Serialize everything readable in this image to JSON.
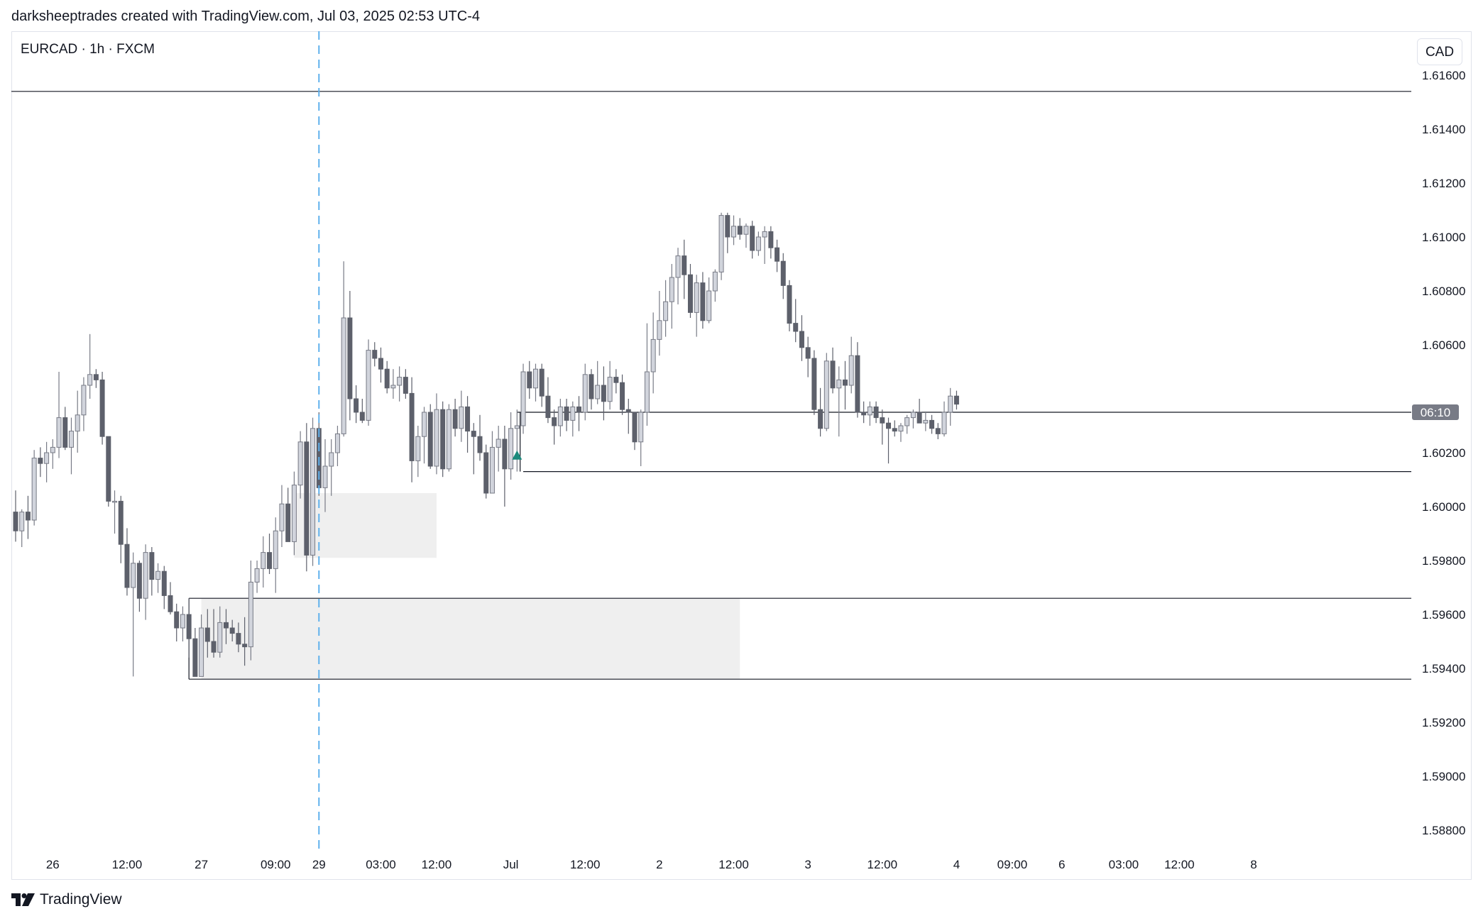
{
  "header": {
    "credit": "darksheeptrades created with TradingView.com, Jul 03, 2025 02:53 UTC-4"
  },
  "symbol": {
    "label": "EURCAD · 1h · FXCM"
  },
  "currency_button": {
    "label": "CAD"
  },
  "footer": {
    "brand": "TradingView",
    "logo_icon": "tradingview-logo-icon"
  },
  "colors": {
    "candle_up_fill": "#d1d4dc",
    "candle_up_border": "#787b86",
    "candle_down": "#5d606b",
    "zone_fill": "#efefef",
    "level_line": "#131722",
    "dashed_line": "#5fb1ec",
    "marker": "#1b8a7c",
    "price_tag": "#787b86"
  },
  "chart_data": {
    "type": "candlestick",
    "symbol": "EURCAD",
    "interval": "1h",
    "source": "FXCM",
    "currency": "CAD",
    "y_axis": {
      "range": [
        1.5875,
        1.6175
      ],
      "ticks": [
        "1.61600",
        "1.61400",
        "1.61200",
        "1.61000",
        "1.60800",
        "1.60600",
        "1.60200",
        "1.60000",
        "1.59800",
        "1.59600",
        "1.59400",
        "1.59200",
        "1.59000",
        "1.58800"
      ],
      "tick_values": [
        1.616,
        1.614,
        1.612,
        1.61,
        1.608,
        1.606,
        1.602,
        1.6,
        1.598,
        1.596,
        1.594,
        1.592,
        1.59,
        1.588
      ]
    },
    "x_axis": {
      "ticks": [
        "26",
        "12:00",
        "27",
        "09:00",
        "29",
        "03:00",
        "12:00",
        "Jul",
        "12:00",
        "2",
        "12:00",
        "3",
        "12:00",
        "4",
        "09:00",
        "6",
        "03:00",
        "12:00",
        "8"
      ],
      "tick_index": [
        6,
        18,
        30,
        42,
        49,
        59,
        68,
        80,
        92,
        104,
        116,
        128,
        140,
        152,
        161,
        169,
        179,
        188,
        200
      ]
    },
    "price_tag": "06:10",
    "candles": [
      {
        "o": 1.5998,
        "h": 1.6006,
        "l": 1.5987,
        "c": 1.5991
      },
      {
        "o": 1.5991,
        "h": 1.5999,
        "l": 1.5985,
        "c": 1.5998
      },
      {
        "o": 1.5998,
        "h": 1.6004,
        "l": 1.5988,
        "c": 1.5995
      },
      {
        "o": 1.5995,
        "h": 1.6021,
        "l": 1.5993,
        "c": 1.6018
      },
      {
        "o": 1.6018,
        "h": 1.6022,
        "l": 1.6011,
        "c": 1.6016
      },
      {
        "o": 1.6016,
        "h": 1.6024,
        "l": 1.6009,
        "c": 1.602
      },
      {
        "o": 1.602,
        "h": 1.6025,
        "l": 1.6014,
        "c": 1.6022
      },
      {
        "o": 1.6022,
        "h": 1.605,
        "l": 1.6018,
        "c": 1.6033
      },
      {
        "o": 1.6033,
        "h": 1.6037,
        "l": 1.6021,
        "c": 1.6022
      },
      {
        "o": 1.6022,
        "h": 1.6033,
        "l": 1.6012,
        "c": 1.6028
      },
      {
        "o": 1.6028,
        "h": 1.6043,
        "l": 1.602,
        "c": 1.6034
      },
      {
        "o": 1.6034,
        "h": 1.6048,
        "l": 1.6028,
        "c": 1.6045
      },
      {
        "o": 1.6045,
        "h": 1.6064,
        "l": 1.604,
        "c": 1.6049
      },
      {
        "o": 1.6049,
        "h": 1.6051,
        "l": 1.6044,
        "c": 1.6047
      },
      {
        "o": 1.6047,
        "h": 1.605,
        "l": 1.6023,
        "c": 1.6026
      },
      {
        "o": 1.6026,
        "h": 1.6026,
        "l": 1.6,
        "c": 1.6002
      },
      {
        "o": 1.6002,
        "h": 1.6006,
        "l": 1.599,
        "c": 1.6002
      },
      {
        "o": 1.6002,
        "h": 1.6004,
        "l": 1.5979,
        "c": 1.5986
      },
      {
        "o": 1.5986,
        "h": 1.5992,
        "l": 1.5967,
        "c": 1.597
      },
      {
        "o": 1.597,
        "h": 1.5983,
        "l": 1.5937,
        "c": 1.5979
      },
      {
        "o": 1.5979,
        "h": 1.598,
        "l": 1.5961,
        "c": 1.5966
      },
      {
        "o": 1.5966,
        "h": 1.5986,
        "l": 1.5958,
        "c": 1.5983
      },
      {
        "o": 1.5983,
        "h": 1.5985,
        "l": 1.5967,
        "c": 1.5973
      },
      {
        "o": 1.5973,
        "h": 1.5979,
        "l": 1.5968,
        "c": 1.5976
      },
      {
        "o": 1.5976,
        "h": 1.5978,
        "l": 1.5962,
        "c": 1.5967
      },
      {
        "o": 1.5967,
        "h": 1.5972,
        "l": 1.596,
        "c": 1.5961
      },
      {
        "o": 1.5961,
        "h": 1.5964,
        "l": 1.595,
        "c": 1.5955
      },
      {
        "o": 1.5955,
        "h": 1.5963,
        "l": 1.595,
        "c": 1.596
      },
      {
        "o": 1.596,
        "h": 1.5966,
        "l": 1.5944,
        "c": 1.5951
      },
      {
        "o": 1.5951,
        "h": 1.5955,
        "l": 1.5937,
        "c": 1.5937
      },
      {
        "o": 1.5937,
        "h": 1.596,
        "l": 1.5937,
        "c": 1.5955
      },
      {
        "o": 1.5955,
        "h": 1.5962,
        "l": 1.5944,
        "c": 1.595
      },
      {
        "o": 1.595,
        "h": 1.5962,
        "l": 1.5944,
        "c": 1.5946
      },
      {
        "o": 1.5946,
        "h": 1.5963,
        "l": 1.5944,
        "c": 1.5957
      },
      {
        "o": 1.5957,
        "h": 1.5962,
        "l": 1.5949,
        "c": 1.5955
      },
      {
        "o": 1.5955,
        "h": 1.5958,
        "l": 1.595,
        "c": 1.5953
      },
      {
        "o": 1.5953,
        "h": 1.5957,
        "l": 1.5946,
        "c": 1.5949
      },
      {
        "o": 1.5949,
        "h": 1.5959,
        "l": 1.5941,
        "c": 1.5948
      },
      {
        "o": 1.5948,
        "h": 1.598,
        "l": 1.5943,
        "c": 1.5972
      },
      {
        "o": 1.5972,
        "h": 1.598,
        "l": 1.5968,
        "c": 1.5977
      },
      {
        "o": 1.5977,
        "h": 1.5989,
        "l": 1.597,
        "c": 1.5983
      },
      {
        "o": 1.5983,
        "h": 1.599,
        "l": 1.5975,
        "c": 1.5977
      },
      {
        "o": 1.5977,
        "h": 1.5996,
        "l": 1.5968,
        "c": 1.5991
      },
      {
        "o": 1.5991,
        "h": 1.6008,
        "l": 1.5985,
        "c": 1.6001
      },
      {
        "o": 1.6001,
        "h": 1.6007,
        "l": 1.5987,
        "c": 1.5987
      },
      {
        "o": 1.5987,
        "h": 1.6013,
        "l": 1.5982,
        "c": 1.6008
      },
      {
        "o": 1.6008,
        "h": 1.6028,
        "l": 1.6003,
        "c": 1.6024
      },
      {
        "o": 1.6024,
        "h": 1.6031,
        "l": 1.5976,
        "c": 1.5982
      },
      {
        "o": 1.5982,
        "h": 1.6033,
        "l": 1.5978,
        "c": 1.6029
      },
      {
        "o": 1.6029,
        "h": 1.6035,
        "l": 1.6004,
        "c": 1.6007
      },
      {
        "o": 1.6007,
        "h": 1.6025,
        "l": 1.5998,
        "c": 1.6015
      },
      {
        "o": 1.6015,
        "h": 1.6025,
        "l": 1.6004,
        "c": 1.602
      },
      {
        "o": 1.602,
        "h": 1.603,
        "l": 1.6015,
        "c": 1.6027
      },
      {
        "o": 1.6027,
        "h": 1.6091,
        "l": 1.6026,
        "c": 1.607
      },
      {
        "o": 1.607,
        "h": 1.608,
        "l": 1.6032,
        "c": 1.604
      },
      {
        "o": 1.604,
        "h": 1.6045,
        "l": 1.6031,
        "c": 1.6035
      },
      {
        "o": 1.6035,
        "h": 1.604,
        "l": 1.6031,
        "c": 1.6032
      },
      {
        "o": 1.6032,
        "h": 1.6062,
        "l": 1.603,
        "c": 1.6058
      },
      {
        "o": 1.6058,
        "h": 1.6061,
        "l": 1.6052,
        "c": 1.6055
      },
      {
        "o": 1.6055,
        "h": 1.6059,
        "l": 1.6046,
        "c": 1.6051
      },
      {
        "o": 1.6051,
        "h": 1.6054,
        "l": 1.6042,
        "c": 1.6044
      },
      {
        "o": 1.6044,
        "h": 1.6051,
        "l": 1.604,
        "c": 1.6045
      },
      {
        "o": 1.6045,
        "h": 1.6052,
        "l": 1.6039,
        "c": 1.6048
      },
      {
        "o": 1.6048,
        "h": 1.6051,
        "l": 1.604,
        "c": 1.6042
      },
      {
        "o": 1.6042,
        "h": 1.6048,
        "l": 1.6009,
        "c": 1.6017
      },
      {
        "o": 1.6017,
        "h": 1.603,
        "l": 1.6011,
        "c": 1.6026
      },
      {
        "o": 1.6026,
        "h": 1.6037,
        "l": 1.6016,
        "c": 1.6035
      },
      {
        "o": 1.6035,
        "h": 1.6038,
        "l": 1.6014,
        "c": 1.6015
      },
      {
        "o": 1.6015,
        "h": 1.6042,
        "l": 1.6012,
        "c": 1.6036
      },
      {
        "o": 1.6036,
        "h": 1.6039,
        "l": 1.6011,
        "c": 1.6014
      },
      {
        "o": 1.6014,
        "h": 1.6038,
        "l": 1.6013,
        "c": 1.6036
      },
      {
        "o": 1.6036,
        "h": 1.604,
        "l": 1.6026,
        "c": 1.6029
      },
      {
        "o": 1.6029,
        "h": 1.6043,
        "l": 1.6024,
        "c": 1.6037
      },
      {
        "o": 1.6037,
        "h": 1.6041,
        "l": 1.602,
        "c": 1.6028
      },
      {
        "o": 1.6028,
        "h": 1.6031,
        "l": 1.6012,
        "c": 1.6026
      },
      {
        "o": 1.6026,
        "h": 1.6034,
        "l": 1.6017,
        "c": 1.602
      },
      {
        "o": 1.602,
        "h": 1.6023,
        "l": 1.6003,
        "c": 1.6005
      },
      {
        "o": 1.6005,
        "h": 1.6028,
        "l": 1.6005,
        "c": 1.6022
      },
      {
        "o": 1.6022,
        "h": 1.603,
        "l": 1.6013,
        "c": 1.6025
      },
      {
        "o": 1.6025,
        "h": 1.603,
        "l": 1.6,
        "c": 1.6014
      },
      {
        "o": 1.6014,
        "h": 1.6035,
        "l": 1.601,
        "c": 1.6029
      },
      {
        "o": 1.6029,
        "h": 1.6036,
        "l": 1.6013,
        "c": 1.603
      },
      {
        "o": 1.603,
        "h": 1.6053,
        "l": 1.6027,
        "c": 1.605
      },
      {
        "o": 1.605,
        "h": 1.6054,
        "l": 1.604,
        "c": 1.6044
      },
      {
        "o": 1.6044,
        "h": 1.6053,
        "l": 1.6039,
        "c": 1.6051
      },
      {
        "o": 1.6051,
        "h": 1.6053,
        "l": 1.6037,
        "c": 1.6041
      },
      {
        "o": 1.6041,
        "h": 1.6048,
        "l": 1.6031,
        "c": 1.6033
      },
      {
        "o": 1.6033,
        "h": 1.6036,
        "l": 1.6023,
        "c": 1.603
      },
      {
        "o": 1.603,
        "h": 1.604,
        "l": 1.6026,
        "c": 1.6037
      },
      {
        "o": 1.6037,
        "h": 1.604,
        "l": 1.6028,
        "c": 1.6032
      },
      {
        "o": 1.6032,
        "h": 1.6039,
        "l": 1.6026,
        "c": 1.6037
      },
      {
        "o": 1.6037,
        "h": 1.6041,
        "l": 1.6028,
        "c": 1.6035
      },
      {
        "o": 1.6035,
        "h": 1.6053,
        "l": 1.6032,
        "c": 1.6049
      },
      {
        "o": 1.6049,
        "h": 1.6051,
        "l": 1.6036,
        "c": 1.604
      },
      {
        "o": 1.604,
        "h": 1.6054,
        "l": 1.6038,
        "c": 1.6045
      },
      {
        "o": 1.6045,
        "h": 1.6052,
        "l": 1.6032,
        "c": 1.6039
      },
      {
        "o": 1.6039,
        "h": 1.6054,
        "l": 1.6036,
        "c": 1.6048
      },
      {
        "o": 1.6048,
        "h": 1.6051,
        "l": 1.6042,
        "c": 1.6046
      },
      {
        "o": 1.6046,
        "h": 1.6049,
        "l": 1.6034,
        "c": 1.6036
      },
      {
        "o": 1.6036,
        "h": 1.604,
        "l": 1.6027,
        "c": 1.6035
      },
      {
        "o": 1.6035,
        "h": 1.6035,
        "l": 1.6021,
        "c": 1.6024
      },
      {
        "o": 1.6024,
        "h": 1.6036,
        "l": 1.6015,
        "c": 1.6035
      },
      {
        "o": 1.6035,
        "h": 1.6068,
        "l": 1.603,
        "c": 1.605
      },
      {
        "o": 1.605,
        "h": 1.6072,
        "l": 1.6042,
        "c": 1.6062
      },
      {
        "o": 1.6062,
        "h": 1.608,
        "l": 1.6056,
        "c": 1.6069
      },
      {
        "o": 1.6069,
        "h": 1.6084,
        "l": 1.6063,
        "c": 1.6076
      },
      {
        "o": 1.6076,
        "h": 1.609,
        "l": 1.6066,
        "c": 1.6085
      },
      {
        "o": 1.6085,
        "h": 1.6096,
        "l": 1.6075,
        "c": 1.6093
      },
      {
        "o": 1.6093,
        "h": 1.6099,
        "l": 1.6077,
        "c": 1.6086
      },
      {
        "o": 1.6086,
        "h": 1.609,
        "l": 1.607,
        "c": 1.6072
      },
      {
        "o": 1.6072,
        "h": 1.6086,
        "l": 1.6063,
        "c": 1.6083
      },
      {
        "o": 1.6083,
        "h": 1.6087,
        "l": 1.6066,
        "c": 1.6069
      },
      {
        "o": 1.6069,
        "h": 1.6085,
        "l": 1.6068,
        "c": 1.608
      },
      {
        "o": 1.608,
        "h": 1.6088,
        "l": 1.6076,
        "c": 1.6087
      },
      {
        "o": 1.6087,
        "h": 1.6109,
        "l": 1.6084,
        "c": 1.6108
      },
      {
        "o": 1.6108,
        "h": 1.6109,
        "l": 1.6094,
        "c": 1.61
      },
      {
        "o": 1.61,
        "h": 1.6108,
        "l": 1.6097,
        "c": 1.6104
      },
      {
        "o": 1.6104,
        "h": 1.6107,
        "l": 1.6099,
        "c": 1.6101
      },
      {
        "o": 1.6101,
        "h": 1.6105,
        "l": 1.6096,
        "c": 1.6104
      },
      {
        "o": 1.6104,
        "h": 1.6106,
        "l": 1.6092,
        "c": 1.6095
      },
      {
        "o": 1.6095,
        "h": 1.6102,
        "l": 1.6093,
        "c": 1.61
      },
      {
        "o": 1.61,
        "h": 1.6104,
        "l": 1.609,
        "c": 1.6102
      },
      {
        "o": 1.6102,
        "h": 1.6104,
        "l": 1.6092,
        "c": 1.6096
      },
      {
        "o": 1.6096,
        "h": 1.6099,
        "l": 1.6087,
        "c": 1.6091
      },
      {
        "o": 1.6091,
        "h": 1.6094,
        "l": 1.6077,
        "c": 1.6082
      },
      {
        "o": 1.6082,
        "h": 1.6084,
        "l": 1.6065,
        "c": 1.6068
      },
      {
        "o": 1.6068,
        "h": 1.6077,
        "l": 1.6061,
        "c": 1.6065
      },
      {
        "o": 1.6065,
        "h": 1.6071,
        "l": 1.6054,
        "c": 1.6059
      },
      {
        "o": 1.6059,
        "h": 1.6063,
        "l": 1.6048,
        "c": 1.6055
      },
      {
        "o": 1.6055,
        "h": 1.6058,
        "l": 1.6034,
        "c": 1.6036
      },
      {
        "o": 1.6036,
        "h": 1.6044,
        "l": 1.6026,
        "c": 1.6029
      },
      {
        "o": 1.6029,
        "h": 1.6057,
        "l": 1.6028,
        "c": 1.6054
      },
      {
        "o": 1.6054,
        "h": 1.6059,
        "l": 1.6042,
        "c": 1.6044
      },
      {
        "o": 1.6044,
        "h": 1.6052,
        "l": 1.6026,
        "c": 1.6047
      },
      {
        "o": 1.6047,
        "h": 1.6054,
        "l": 1.6036,
        "c": 1.6045
      },
      {
        "o": 1.6045,
        "h": 1.6063,
        "l": 1.6042,
        "c": 1.6056
      },
      {
        "o": 1.6056,
        "h": 1.6061,
        "l": 1.6033,
        "c": 1.6035
      },
      {
        "o": 1.6035,
        "h": 1.6039,
        "l": 1.6031,
        "c": 1.6034
      },
      {
        "o": 1.6034,
        "h": 1.6039,
        "l": 1.603,
        "c": 1.6037
      },
      {
        "o": 1.6037,
        "h": 1.6039,
        "l": 1.6031,
        "c": 1.6033
      },
      {
        "o": 1.6033,
        "h": 1.6036,
        "l": 1.6023,
        "c": 1.6031
      },
      {
        "o": 1.6031,
        "h": 1.6033,
        "l": 1.6016,
        "c": 1.6029
      },
      {
        "o": 1.6029,
        "h": 1.6032,
        "l": 1.6026,
        "c": 1.6028
      },
      {
        "o": 1.6028,
        "h": 1.6031,
        "l": 1.6024,
        "c": 1.603
      },
      {
        "o": 1.603,
        "h": 1.6034,
        "l": 1.6027,
        "c": 1.6033
      },
      {
        "o": 1.6033,
        "h": 1.6036,
        "l": 1.6029,
        "c": 1.6035
      },
      {
        "o": 1.6035,
        "h": 1.604,
        "l": 1.6032,
        "c": 1.6031
      },
      {
        "o": 1.6031,
        "h": 1.6035,
        "l": 1.6028,
        "c": 1.6032
      },
      {
        "o": 1.6032,
        "h": 1.6034,
        "l": 1.6027,
        "c": 1.6029
      },
      {
        "o": 1.6029,
        "h": 1.6031,
        "l": 1.6025,
        "c": 1.6027
      },
      {
        "o": 1.6027,
        "h": 1.6039,
        "l": 1.6026,
        "c": 1.6035
      },
      {
        "o": 1.6035,
        "h": 1.6044,
        "l": 1.603,
        "c": 1.6041
      },
      {
        "o": 1.6041,
        "h": 1.6043,
        "l": 1.6036,
        "c": 1.6038
      }
    ],
    "zones": [
      {
        "name": "upper-demand-zone",
        "from_index": 45,
        "to_index": 68,
        "top": 1.6005,
        "bottom": 1.5981
      },
      {
        "name": "lower-demand-zone",
        "from_index": 30,
        "to_index": 117,
        "top": 1.5966,
        "bottom": 1.5936
      }
    ],
    "levels": [
      {
        "name": "top-level-line",
        "price": 1.6154,
        "from_index": 0
      },
      {
        "name": "midrange-level-line",
        "price": 1.6035,
        "from_index": 81
      },
      {
        "name": "range-low-level-line",
        "price": 1.6013,
        "from_index": 82
      },
      {
        "name": "zone-top-level-line",
        "price": 1.5966,
        "from_index": 28
      },
      {
        "name": "zone-bottom-level-line",
        "price": 1.5936,
        "from_index": 28
      }
    ],
    "vertical_marker_index": 49,
    "signal_marker": {
      "index": 81,
      "price": 1.6019
    }
  }
}
